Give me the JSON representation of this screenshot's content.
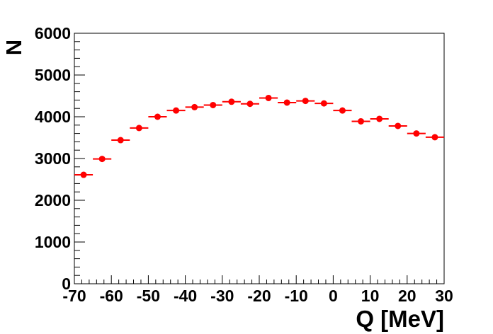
{
  "chart_data": {
    "type": "scatter",
    "title": "",
    "xlabel": "Q [MeV]",
    "ylabel": "N",
    "xlim": [
      -70,
      30
    ],
    "ylim": [
      0,
      6000
    ],
    "x_ticks": [
      "-70",
      "-60",
      "-50",
      "-40",
      "-30",
      "-20",
      "-10",
      "0",
      "10",
      "20",
      "30"
    ],
    "y_ticks": [
      "0",
      "1000",
      "2000",
      "3000",
      "4000",
      "5000",
      "6000"
    ],
    "bin_width": 5,
    "marker_color": "#ff0000",
    "grid": false,
    "series": [
      {
        "x": [
          -67.5,
          -62.5,
          -57.5,
          -52.5,
          -47.5,
          -42.5,
          -37.5,
          -32.5,
          -27.5,
          -22.5,
          -17.5,
          -12.5,
          -7.5,
          -2.5,
          2.5,
          7.5,
          12.5,
          17.5,
          22.5,
          27.5
        ],
        "values": [
          2610,
          2990,
          3440,
          3730,
          4000,
          4150,
          4230,
          4280,
          4360,
          4310,
          4450,
          4340,
          4380,
          4320,
          4150,
          3890,
          3950,
          3780,
          3600,
          3510
        ]
      }
    ]
  }
}
